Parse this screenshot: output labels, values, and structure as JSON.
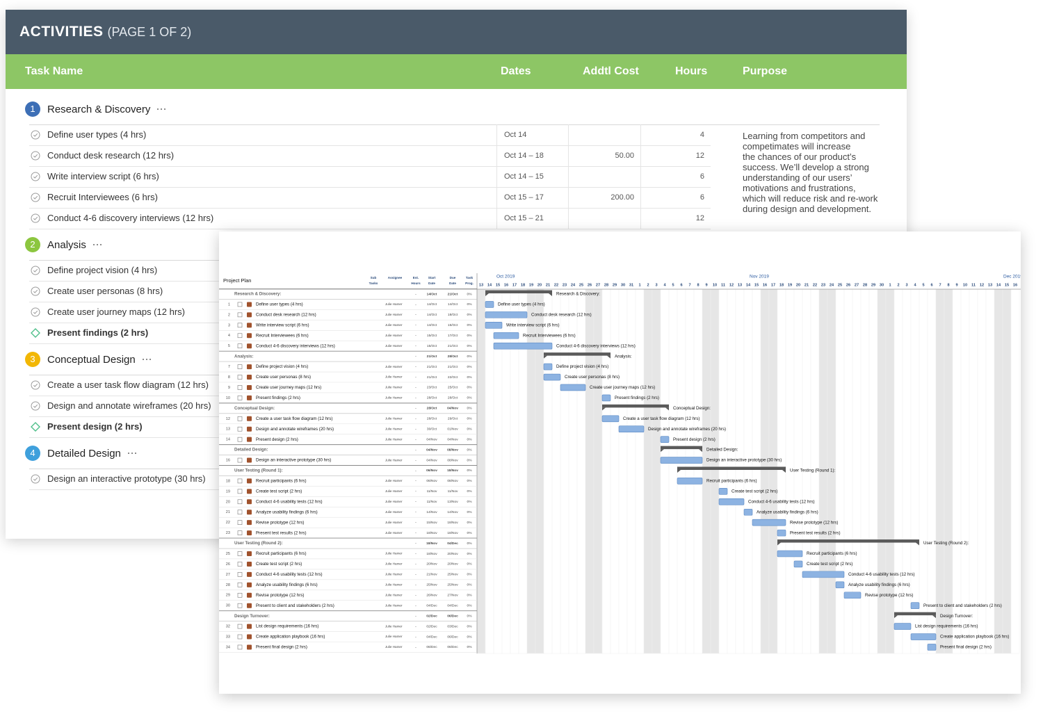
{
  "header": {
    "title": "ACTIVITIES",
    "subtitle": "(PAGE 1 OF 2)"
  },
  "columns": [
    "Task Name",
    "Dates",
    "Addtl Cost",
    "Hours",
    "Purpose"
  ],
  "groups": [
    {
      "num": "1",
      "name": "Research & Discovery",
      "color": "#3d6fb6",
      "purpose": [
        "Learning from competitors and",
        "competimates will increase",
        "the chances of our product’s",
        "success. We’ll develop a strong",
        "understanding of our users’",
        "motivations and frustrations,",
        "which will reduce risk and re-work",
        "during design and development."
      ],
      "tasks": [
        {
          "name": "Define user types (4 hrs)",
          "dates": "Oct 14",
          "hours": 4
        },
        {
          "name": "Conduct desk research (12 hrs)",
          "dates": "Oct 14 – 18",
          "cost": "50.00",
          "hours": 12
        },
        {
          "name": "Write interview script (6 hrs)",
          "dates": "Oct 14 – 15",
          "hours": 6
        },
        {
          "name": "Recruit Interviewees (6 hrs)",
          "dates": "Oct 15 – 17",
          "cost": "200.00",
          "hours": 6
        },
        {
          "name": "Conduct 4-6 discovery interviews (12 hrs)",
          "dates": "Oct 15 – 21",
          "hours": 12
        }
      ]
    },
    {
      "num": "2",
      "name": "Analysis",
      "color": "#8cc63f",
      "tasks": [
        {
          "name": "Define project vision (4 hrs)"
        },
        {
          "name": "Create user personas (8 hrs)"
        },
        {
          "name": "Create user journey maps (12 hrs)"
        },
        {
          "name": "Present findings (2 hrs)",
          "milestone": true
        }
      ]
    },
    {
      "num": "3",
      "name": "Conceptual Design",
      "color": "#f2b705",
      "tasks": [
        {
          "name": "Create a user task flow diagram (12 hrs)"
        },
        {
          "name": "Design and annotate wireframes (20 hrs)"
        },
        {
          "name": "Present design (2 hrs)",
          "milestone": true
        }
      ]
    },
    {
      "num": "4",
      "name": "Detailed Design",
      "color": "#3fa0dc",
      "tasks": [
        {
          "name": "Design an interactive prototype (30 hrs)"
        }
      ]
    }
  ],
  "plan": {
    "title": "Project Plan",
    "columns": [
      [
        "Sub",
        "Tasks"
      ],
      [
        "Assignee"
      ],
      [
        "Est.",
        "Hours"
      ],
      [
        "Start",
        "Date"
      ],
      [
        "Due",
        "Date"
      ],
      [
        "Task",
        "Prog."
      ]
    ],
    "months": [
      {
        "label": "Oct 2019",
        "days": [
          13,
          14,
          15,
          16,
          17,
          18,
          19,
          20,
          21,
          22,
          23,
          24,
          25,
          26,
          27,
          28,
          29,
          30,
          31
        ]
      },
      {
        "label": "Nov 2019",
        "days": [
          1,
          2,
          3,
          4,
          5,
          6,
          7,
          8,
          9,
          10,
          11,
          12,
          13,
          14,
          15,
          16,
          17,
          18,
          19,
          20,
          21,
          22,
          23,
          24,
          25,
          26,
          27,
          28,
          29,
          30
        ]
      },
      {
        "label": "Dec 2019",
        "days": [
          1,
          2,
          3,
          4,
          5,
          6,
          7,
          8,
          9,
          10,
          11,
          12,
          13,
          14,
          15,
          16
        ]
      }
    ],
    "rows": [
      {
        "group": true,
        "name": "Research & Discovery:",
        "hours": "-",
        "start": "14/Oct",
        "due": "21/Oct",
        "progress": "0%"
      },
      {
        "num": 1,
        "name": "Define user types (4 hrs)",
        "assignee": "Julie Hamer",
        "hours": "-",
        "start": "14/Oct",
        "due": "14/Oct",
        "progress": "0%"
      },
      {
        "num": 2,
        "name": "Conduct desk research (12 hrs)",
        "assignee": "Julie Hamer",
        "hours": "-",
        "start": "14/Oct",
        "due": "18/Oct",
        "progress": "0%"
      },
      {
        "num": 3,
        "name": "Write interview script (6 hrs)",
        "assignee": "Julie Hamer",
        "hours": "-",
        "start": "14/Oct",
        "due": "15/Oct",
        "progress": "0%"
      },
      {
        "num": 4,
        "name": "Recruit Interviewees (6 hrs)",
        "assignee": "Julie Hamer",
        "hours": "-",
        "start": "15/Oct",
        "due": "17/Oct",
        "progress": "0%"
      },
      {
        "num": 5,
        "name": "Conduct 4-6 discovery interviews (12 hrs)",
        "assignee": "Julie Hamer",
        "hours": "-",
        "start": "15/Oct",
        "due": "21/Oct",
        "progress": "0%"
      },
      {
        "group": true,
        "name": "Analysis:",
        "hours": "-",
        "start": "21/Oct",
        "due": "28/Oct",
        "progress": "0%"
      },
      {
        "num": 7,
        "name": "Define project vision (4 hrs)",
        "assignee": "Julie Hamer",
        "hours": "-",
        "start": "21/Oct",
        "due": "21/Oct",
        "progress": "0%"
      },
      {
        "num": 8,
        "name": "Create user personas (8 hrs)",
        "assignee": "Julie Hamer",
        "hours": "-",
        "start": "21/Oct",
        "due": "22/Oct",
        "progress": "0%"
      },
      {
        "num": 9,
        "name": "Create user journey maps (12 hrs)",
        "assignee": "Julie Hamer",
        "hours": "-",
        "start": "23/Oct",
        "due": "25/Oct",
        "progress": "0%"
      },
      {
        "num": 10,
        "name": "Present findings (2 hrs)",
        "assignee": "Julie Hamer",
        "hours": "-",
        "start": "28/Oct",
        "due": "28/Oct",
        "progress": "0%"
      },
      {
        "group": true,
        "name": "Conceptual Design:",
        "hours": "-",
        "start": "28/Oct",
        "due": "04/Nov",
        "progress": "0%"
      },
      {
        "num": 12,
        "name": "Create a user task flow diagram (12 hrs)",
        "assignee": "Julie Hamer",
        "hours": "-",
        "start": "28/Oct",
        "due": "29/Oct",
        "progress": "0%"
      },
      {
        "num": 13,
        "name": "Design and annotate wireframes (20 hrs)",
        "assignee": "Julie Hamer",
        "hours": "-",
        "start": "30/Oct",
        "due": "01/Nov",
        "progress": "0%"
      },
      {
        "num": 14,
        "name": "Present design (2 hrs)",
        "assignee": "Julie Hamer",
        "hours": "-",
        "start": "04/Nov",
        "due": "04/Nov",
        "progress": "0%"
      },
      {
        "group": true,
        "name": "Detailed Design:",
        "hours": "-",
        "start": "04/Nov",
        "due": "08/Nov",
        "progress": "0%"
      },
      {
        "num": 16,
        "name": "Design an interactive prototype (30 hrs)",
        "assignee": "Julie Hamer",
        "hours": "-",
        "start": "04/Nov",
        "due": "08/Nov",
        "progress": "0%"
      },
      {
        "group": true,
        "name": "User Testing (Round 1):",
        "hours": "-",
        "start": "06/Nov",
        "due": "18/Nov",
        "progress": "0%"
      },
      {
        "num": 18,
        "name": "Recruit participants (6 hrs)",
        "assignee": "Julie Hamer",
        "hours": "-",
        "start": "06/Nov",
        "due": "08/Nov",
        "progress": "0%"
      },
      {
        "num": 19,
        "name": "Create test script (2 hrs)",
        "assignee": "Julie Hamer",
        "hours": "-",
        "start": "11/Nov",
        "due": "11/Nov",
        "progress": "0%"
      },
      {
        "num": 20,
        "name": "Conduct 4-6 usability tests (12 hrs)",
        "assignee": "Julie Hamer",
        "hours": "-",
        "start": "11/Nov",
        "due": "13/Nov",
        "progress": "0%"
      },
      {
        "num": 21,
        "name": "Analyze usability findings (6 hrs)",
        "assignee": "Julie Hamer",
        "hours": "-",
        "start": "14/Nov",
        "due": "14/Nov",
        "progress": "0%"
      },
      {
        "num": 22,
        "name": "Revise prototype (12 hrs)",
        "assignee": "Julie Hamer",
        "hours": "-",
        "start": "15/Nov",
        "due": "18/Nov",
        "progress": "0%"
      },
      {
        "num": 23,
        "name": "Present test results (2 hrs)",
        "assignee": "Julie Hamer",
        "hours": "-",
        "start": "18/Nov",
        "due": "18/Nov",
        "progress": "0%"
      },
      {
        "group": true,
        "name": "User Testing (Round 2):",
        "hours": "-",
        "start": "18/Nov",
        "due": "04/Dec",
        "progress": "0%"
      },
      {
        "num": 25,
        "name": "Recruit participants (6 hrs)",
        "assignee": "Julie Hamer",
        "hours": "-",
        "start": "18/Nov",
        "due": "20/Nov",
        "progress": "0%"
      },
      {
        "num": 26,
        "name": "Create test script (2 hrs)",
        "assignee": "Julie Hamer",
        "hours": "-",
        "start": "20/Nov",
        "due": "20/Nov",
        "progress": "0%"
      },
      {
        "num": 27,
        "name": "Conduct 4-6 usability tests (12 hrs)",
        "assignee": "Julie Hamer",
        "hours": "-",
        "start": "21/Nov",
        "due": "25/Nov",
        "progress": "0%"
      },
      {
        "num": 28,
        "name": "Analyze usability findings (6 hrs)",
        "assignee": "Julie Hamer",
        "hours": "-",
        "start": "25/Nov",
        "due": "25/Nov",
        "progress": "0%"
      },
      {
        "num": 29,
        "name": "Revise prototype (12 hrs)",
        "assignee": "Julie Hamer",
        "hours": "-",
        "start": "26/Nov",
        "due": "27/Nov",
        "progress": "0%"
      },
      {
        "num": 30,
        "name": "Present to client and stakeholders (2 hrs)",
        "assignee": "Julie Hamer",
        "hours": "-",
        "start": "04/Dec",
        "due": "04/Dec",
        "progress": "0%"
      },
      {
        "group": true,
        "name": "Design Turnover:",
        "hours": "-",
        "start": "02/Dec",
        "due": "06/Dec",
        "progress": "0%"
      },
      {
        "num": 32,
        "name": "List design requirements (16 hrs)",
        "assignee": "Julie Hamer",
        "hours": "-",
        "start": "02/Dec",
        "due": "03/Dec",
        "progress": "0%"
      },
      {
        "num": 33,
        "name": "Create application playbook (16 hrs)",
        "assignee": "Julie Hamer",
        "hours": "-",
        "start": "04/Dec",
        "due": "06/Dec",
        "progress": "0%"
      },
      {
        "num": 34,
        "name": "Present final design (2 hrs)",
        "assignee": "Julie Hamer",
        "hours": "-",
        "start": "06/Dec",
        "due": "06/Dec",
        "progress": "0%"
      }
    ]
  }
}
